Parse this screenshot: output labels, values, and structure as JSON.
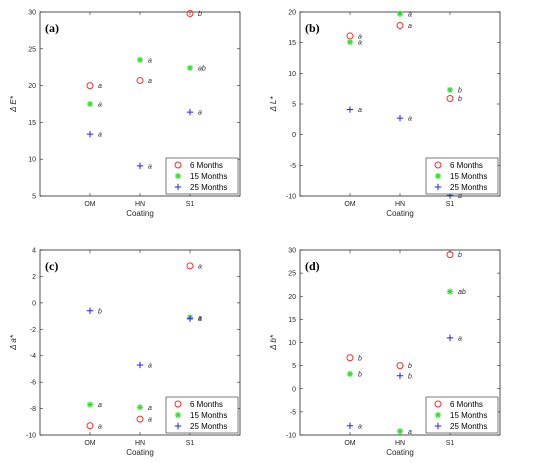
{
  "colors": {
    "6 Months": "#ff2a2a",
    "15 Months": "#22dd22",
    "25 Months": "#2222ff"
  },
  "chart_data": [
    {
      "type": "scatter",
      "panel": "(a)",
      "xlabel": "Coating",
      "ylabel": "Δ E*",
      "categories": [
        "OM",
        "HN",
        "S1"
      ],
      "ylim": [
        5,
        30
      ],
      "yticks": [
        5,
        10,
        15,
        20,
        25,
        30
      ],
      "legend": {
        "position": "bottom-right",
        "entries": [
          "6 Months",
          "15 Months",
          "25 Months"
        ]
      },
      "series": [
        {
          "name": "6 Months",
          "marker": "circle",
          "values": [
            20.0,
            20.7,
            29.8
          ],
          "labels": [
            "a",
            "a",
            "b"
          ]
        },
        {
          "name": "15 Months",
          "marker": "star",
          "values": [
            17.5,
            23.5,
            22.4
          ],
          "labels": [
            "a",
            "a",
            "ab"
          ]
        },
        {
          "name": "25 Months",
          "marker": "plus",
          "values": [
            13.4,
            9.1,
            16.4
          ],
          "labels": [
            "a",
            "a",
            "a"
          ]
        }
      ]
    },
    {
      "type": "scatter",
      "panel": "(b)",
      "xlabel": "Coating",
      "ylabel": "Δ L*",
      "categories": [
        "OM",
        "HN",
        "S1"
      ],
      "ylim": [
        -10,
        20
      ],
      "yticks": [
        -10,
        -5,
        0,
        5,
        10,
        15,
        20
      ],
      "legend": {
        "position": "bottom-right",
        "entries": [
          "6 Months",
          "15 Months",
          "25 Months"
        ]
      },
      "series": [
        {
          "name": "6 Months",
          "marker": "circle",
          "values": [
            16.1,
            17.8,
            5.9
          ],
          "labels": [
            "a",
            "a",
            "b"
          ]
        },
        {
          "name": "15 Months",
          "marker": "star",
          "values": [
            15.1,
            19.7,
            7.3
          ],
          "labels": [
            "a",
            "a",
            "b"
          ]
        },
        {
          "name": "25 Months",
          "marker": "plus",
          "values": [
            4.1,
            2.7,
            -9.9
          ],
          "labels": [
            "a",
            "a",
            "a"
          ]
        }
      ]
    },
    {
      "type": "scatter",
      "panel": "(c)",
      "xlabel": "Coating",
      "ylabel": "Δ a*",
      "categories": [
        "OM",
        "HN",
        "S1"
      ],
      "ylim": [
        -10,
        4
      ],
      "yticks": [
        -10,
        -8,
        -6,
        -4,
        -2,
        0,
        2,
        4
      ],
      "legend": {
        "position": "bottom-right",
        "entries": [
          "6 Months",
          "15 Months",
          "25 Months"
        ]
      },
      "series": [
        {
          "name": "6 Months",
          "marker": "circle",
          "values": [
            -9.3,
            -8.8,
            2.8
          ],
          "labels": [
            "a",
            "a",
            "a"
          ]
        },
        {
          "name": "15 Months",
          "marker": "star",
          "values": [
            -7.7,
            -7.9,
            -1.1
          ],
          "labels": [
            "a",
            "a",
            "a"
          ]
        },
        {
          "name": "25 Months",
          "marker": "plus",
          "values": [
            -0.6,
            -4.7,
            -1.2
          ],
          "labels": [
            "b",
            "a",
            "a"
          ]
        }
      ]
    },
    {
      "type": "scatter",
      "panel": "(d)",
      "xlabel": "Coating",
      "ylabel": "Δ b*",
      "categories": [
        "OM",
        "HN",
        "S1"
      ],
      "ylim": [
        -10,
        30
      ],
      "yticks": [
        -10,
        -5,
        0,
        5,
        10,
        15,
        20,
        25,
        30
      ],
      "legend": {
        "position": "bottom-right",
        "entries": [
          "6 Months",
          "15 Months",
          "25 Months"
        ]
      },
      "series": [
        {
          "name": "6 Months",
          "marker": "circle",
          "values": [
            6.7,
            5.0,
            29.0
          ],
          "labels": [
            "b",
            "b",
            "b"
          ]
        },
        {
          "name": "15 Months",
          "marker": "star",
          "values": [
            3.2,
            -9.2,
            21.0
          ],
          "labels": [
            "b",
            "a",
            "ab"
          ]
        },
        {
          "name": "25 Months",
          "marker": "plus",
          "values": [
            -8.0,
            2.8,
            11.0
          ],
          "labels": [
            "a",
            "b",
            "a"
          ]
        }
      ]
    }
  ]
}
